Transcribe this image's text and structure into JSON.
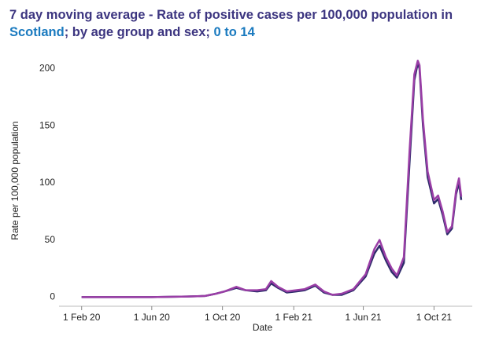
{
  "chart_data": {
    "type": "line",
    "title_parts": [
      {
        "text": "7 day moving average - Rate of positive cases per 100,000 population in ",
        "color": "#3c3580"
      },
      {
        "text": "Scotland",
        "color": "#1a7abf"
      },
      {
        "text": "; by age group and sex; ",
        "color": "#3c3580"
      },
      {
        "text": "0 to 14",
        "color": "#1a7abf"
      }
    ],
    "x_label": "Date",
    "y_label": "Rate per 100,000 population",
    "x": [
      "2020-02-01",
      "2020-04-01",
      "2020-06-01",
      "2020-08-01",
      "2020-09-01",
      "2020-09-20",
      "2020-10-05",
      "2020-10-25",
      "2020-11-10",
      "2020-11-30",
      "2020-12-15",
      "2020-12-24",
      "2021-01-05",
      "2021-01-20",
      "2021-02-05",
      "2021-02-20",
      "2021-03-10",
      "2021-03-25",
      "2021-04-09",
      "2021-04-25",
      "2021-05-15",
      "2021-06-05",
      "2021-06-20",
      "2021-06-29",
      "2021-07-10",
      "2021-07-20",
      "2021-07-29",
      "2021-08-10",
      "2021-08-20",
      "2021-08-28",
      "2021-09-03",
      "2021-09-06",
      "2021-09-12",
      "2021-09-20",
      "2021-10-01",
      "2021-10-08",
      "2021-10-16",
      "2021-10-24",
      "2021-11-01",
      "2021-11-08",
      "2021-11-13",
      "2021-11-17"
    ],
    "series": [
      {
        "color": "#2e2b6b",
        "values": [
          0,
          0,
          0,
          0.5,
          1,
          3,
          5,
          8,
          6,
          5,
          6,
          12,
          8,
          4,
          5,
          6,
          10,
          4,
          2,
          2,
          6,
          18,
          38,
          45,
          32,
          22,
          17,
          30,
          120,
          190,
          205,
          200,
          150,
          105,
          82,
          86,
          72,
          55,
          60,
          90,
          100,
          85
        ]
      },
      {
        "color": "#9a3ea6",
        "values": [
          0,
          0,
          0,
          0.5,
          1,
          3,
          5,
          9,
          6,
          6,
          7,
          14,
          9,
          5,
          6,
          7,
          11,
          5,
          2,
          3,
          7,
          20,
          42,
          50,
          35,
          25,
          19,
          35,
          130,
          195,
          207,
          203,
          155,
          110,
          85,
          89,
          75,
          57,
          62,
          93,
          104,
          88
        ]
      }
    ],
    "xlim": [
      "2019-12-24",
      "2021-12-06"
    ],
    "xticks": [
      {
        "value": "2020-02-01",
        "label": "1 Feb 20"
      },
      {
        "value": "2020-06-01",
        "label": "1 Jun 20"
      },
      {
        "value": "2020-10-01",
        "label": "1 Oct 20"
      },
      {
        "value": "2021-02-01",
        "label": "1 Feb 21"
      },
      {
        "value": "2021-06-01",
        "label": "1 Jun 21"
      },
      {
        "value": "2021-10-01",
        "label": "1 Oct 21"
      }
    ],
    "ylim": [
      -8,
      212
    ],
    "yticks": [
      0,
      50,
      100,
      150,
      200
    ],
    "grid": false
  }
}
